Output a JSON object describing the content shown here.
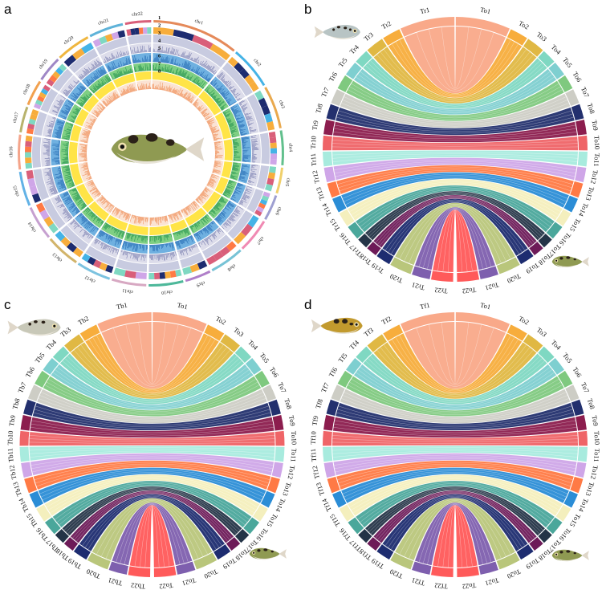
{
  "panels": {
    "a": {
      "label": "a",
      "chromosomes": [
        "chr1",
        "chr2",
        "chr3",
        "chr4",
        "chr5",
        "chr6",
        "chr7",
        "chr8",
        "chr9",
        "chr10",
        "chr11",
        "chr12",
        "chr13",
        "chr14",
        "chr15",
        "chr16",
        "chr17",
        "chr18",
        "chr19",
        "chr20",
        "chr21",
        "chr22"
      ],
      "track_numbers": [
        "1",
        "2",
        "3",
        "4",
        "5",
        "6",
        "7",
        "8"
      ],
      "track_colors": [
        "#7ec8e3",
        "#d95f7a",
        "#b8bcd6",
        "#d9d9e8",
        "#3d87c9",
        "#5cb85c",
        "#ffe14d",
        "#f7b590"
      ]
    },
    "b": {
      "label": "b",
      "species_left": "Tr",
      "species_right": "To"
    },
    "c": {
      "label": "c",
      "species_left": "Tb",
      "species_right": "To"
    },
    "d": {
      "label": "d",
      "species_left": "Tf",
      "species_right": "To"
    },
    "pair_colors": [
      "#f9a989",
      "#f7ad3c",
      "#e0b843",
      "#7fd8c2",
      "#7ecfd0",
      "#7fc97f",
      "#cdcdc5",
      "#23306e",
      "#8c1d4e",
      "#ef6467",
      "#a8ebde",
      "#cfa6e8",
      "#ff7a45",
      "#2b8dd6",
      "#f4efbd",
      "#4aa79b",
      "#243447",
      "#6d1a58",
      "#1d2c70",
      "#b9c67b",
      "#7e5fae",
      "#ff5a5a"
    ]
  }
}
